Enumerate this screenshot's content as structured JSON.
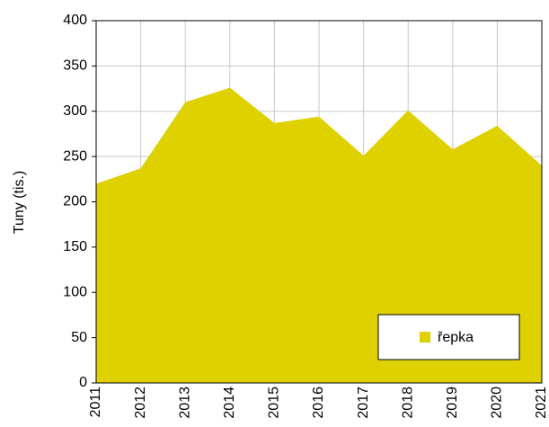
{
  "chart_data": {
    "type": "area",
    "categories": [
      "2011",
      "2012",
      "2013",
      "2014",
      "2015",
      "2016",
      "2017",
      "2018",
      "2019",
      "2020",
      "2021"
    ],
    "series": [
      {
        "name": "řepka",
        "color": "#dfd000",
        "values": [
          220,
          237,
          310,
          326,
          287,
          294,
          251,
          301,
          258,
          284,
          240
        ]
      }
    ],
    "ylabel": "Tuny (tis.)",
    "ylim": [
      0,
      400
    ],
    "yticks": [
      0,
      50,
      100,
      150,
      200,
      250,
      300,
      350,
      400
    ],
    "grid": true,
    "legend": "lower right"
  }
}
